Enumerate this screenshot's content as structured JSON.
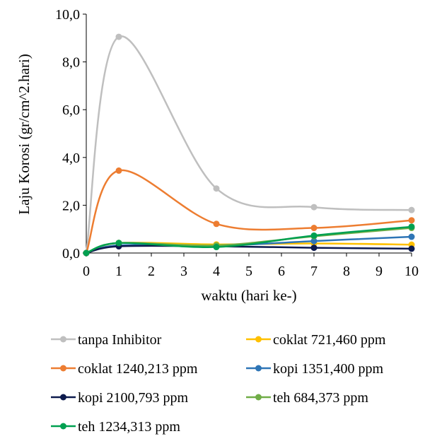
{
  "chart_data": {
    "type": "line",
    "smooth": true,
    "xlabel": "waktu (hari ke-)",
    "ylabel": "Laju Korosi (gr/cm^2.hari)",
    "xlim": [
      0,
      10
    ],
    "ylim": [
      0,
      10
    ],
    "x_ticks": [
      "0",
      "1",
      "2",
      "3",
      "4",
      "5",
      "6",
      "7",
      "8",
      "9",
      "10"
    ],
    "y_ticks": [
      "0,0",
      "2,0",
      "4,0",
      "6,0",
      "8,0",
      "10,0"
    ],
    "grid": false,
    "legend_position": "bottom",
    "x": [
      0,
      1,
      4,
      7,
      10
    ],
    "series": [
      {
        "name": "tanpa Inhibitor",
        "color": "#bfbfbf",
        "values": [
          0,
          9.05,
          2.7,
          1.92,
          1.8
        ]
      },
      {
        "name": "coklat 721,460 ppm",
        "color": "#ffc000",
        "values": [
          0,
          0.42,
          0.36,
          0.4,
          0.35
        ]
      },
      {
        "name": "coklat 1240,213 ppm",
        "color": "#ed7d31",
        "values": [
          0,
          3.45,
          1.22,
          1.05,
          1.37
        ]
      },
      {
        "name": "kopi 1351,400 ppm",
        "color": "#2e75b6",
        "values": [
          0,
          0.32,
          0.3,
          0.5,
          0.68
        ]
      },
      {
        "name": "kopi 2100,793 ppm",
        "color": "#0d1a4d",
        "values": [
          0,
          0.28,
          0.28,
          0.22,
          0.18
        ]
      },
      {
        "name": "teh 684,373 ppm",
        "color": "#70ad47",
        "values": [
          0,
          0.42,
          0.32,
          0.7,
          1.05
        ]
      },
      {
        "name": "teh 1234,313 ppm",
        "color": "#00a050",
        "values": [
          0,
          0.42,
          0.25,
          0.73,
          1.1
        ]
      }
    ]
  }
}
